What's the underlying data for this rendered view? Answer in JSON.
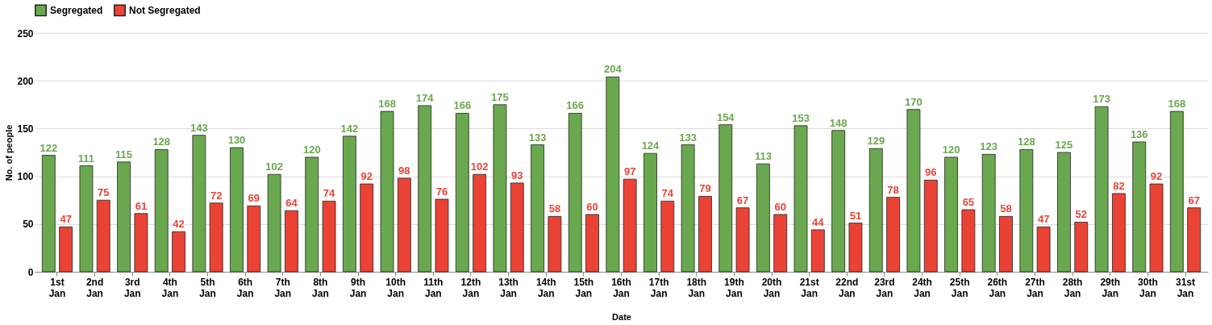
{
  "chart_data": {
    "type": "bar",
    "xlabel": "Date",
    "ylabel": "No. of people",
    "categories": [
      "1st Jan",
      "2nd Jan",
      "3rd Jan",
      "4th Jan",
      "5th Jan",
      "6th Jan",
      "7th Jan",
      "8th Jan",
      "9th Jan",
      "10th Jan",
      "11th Jan",
      "12th Jan",
      "13th Jan",
      "14th Jan",
      "15th Jan",
      "16th Jan",
      "17th Jan",
      "18th Jan",
      "19th Jan",
      "20th Jan",
      "21st Jan",
      "22nd Jan",
      "23rd Jan",
      "24th Jan",
      "25th Jan",
      "26th Jan",
      "27th Jan",
      "28th Jan",
      "29th Jan",
      "30th Jan",
      "31st Jan"
    ],
    "series": [
      {
        "name": "Segregated",
        "color": "#6aa84f",
        "values": [
          122,
          111,
          115,
          128,
          143,
          130,
          102,
          120,
          142,
          168,
          174,
          166,
          175,
          133,
          166,
          204,
          124,
          133,
          154,
          113,
          153,
          148,
          129,
          170,
          120,
          123,
          128,
          125,
          173,
          136,
          168
        ]
      },
      {
        "name": "Not Segregated",
        "color": "#ea4335",
        "values": [
          47,
          75,
          61,
          42,
          72,
          69,
          64,
          74,
          92,
          98,
          76,
          102,
          93,
          58,
          60,
          97,
          74,
          79,
          67,
          60,
          44,
          51,
          78,
          96,
          65,
          58,
          47,
          52,
          82,
          92,
          67
        ]
      }
    ],
    "ylim": [
      0,
      250
    ],
    "yticks": [
      0,
      50,
      100,
      150,
      200,
      250
    ],
    "grid": "y",
    "legend": "top",
    "data_labels": true
  }
}
